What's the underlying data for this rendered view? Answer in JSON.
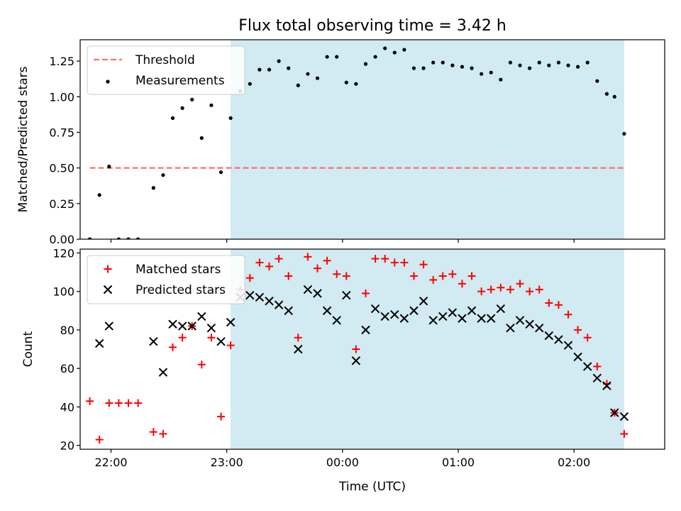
{
  "figure": {
    "title": "Flux total observing time = 3.42 h",
    "xlabel": "Time (UTC)"
  },
  "colors": {
    "shade": "#add8e6",
    "threshold": "#ff6f6f",
    "measurement": "#000000",
    "matched": "#ff0000",
    "predicted": "#000000"
  },
  "chart_data": [
    {
      "type": "scatter",
      "panel": "top",
      "ylabel": "Matched/Predicted stars",
      "xlim": [
        "21:44",
        "02:47"
      ],
      "ylim": [
        0,
        1.4
      ],
      "yticks": [
        0.0,
        0.25,
        0.5,
        0.75,
        1.0,
        1.25
      ],
      "ytick_labels": [
        "0.00",
        "0.25",
        "0.50",
        "0.75",
        "1.00",
        "1.25"
      ],
      "xticks": [
        "22:00",
        "23:00",
        "00:00",
        "01:00",
        "02:00"
      ],
      "shaded_span": [
        "23:02",
        "02:26"
      ],
      "threshold": {
        "name": "Threshold",
        "y": 0.5,
        "x_range": [
          "21:49",
          "02:26"
        ]
      },
      "legend": {
        "placement": "upper-left",
        "entries": [
          "Threshold",
          "Measurements"
        ]
      },
      "series": [
        {
          "name": "Measurements",
          "marker": "dot",
          "points": [
            [
              "21:49",
              0.0
            ],
            [
              "21:54",
              0.31
            ],
            [
              "21:59",
              0.51
            ],
            [
              "22:04",
              0.0
            ],
            [
              "22:09",
              0.0
            ],
            [
              "22:14",
              0.0
            ],
            [
              "22:22",
              0.36
            ],
            [
              "22:27",
              0.45
            ],
            [
              "22:32",
              0.85
            ],
            [
              "22:37",
              0.92
            ],
            [
              "22:42",
              0.98
            ],
            [
              "22:47",
              0.71
            ],
            [
              "22:52",
              0.94
            ],
            [
              "22:57",
              0.47
            ],
            [
              "23:02",
              0.85
            ],
            [
              "23:07",
              1.04
            ],
            [
              "23:12",
              1.09
            ],
            [
              "23:17",
              1.19
            ],
            [
              "23:22",
              1.19
            ],
            [
              "23:27",
              1.25
            ],
            [
              "23:32",
              1.2
            ],
            [
              "23:37",
              1.08
            ],
            [
              "23:42",
              1.16
            ],
            [
              "23:47",
              1.13
            ],
            [
              "23:52",
              1.28
            ],
            [
              "23:57",
              1.28
            ],
            [
              "00:02",
              1.1
            ],
            [
              "00:07",
              1.09
            ],
            [
              "00:12",
              1.23
            ],
            [
              "00:17",
              1.28
            ],
            [
              "00:22",
              1.34
            ],
            [
              "00:27",
              1.31
            ],
            [
              "00:32",
              1.33
            ],
            [
              "00:37",
              1.2
            ],
            [
              "00:42",
              1.2
            ],
            [
              "00:47",
              1.24
            ],
            [
              "00:52",
              1.24
            ],
            [
              "00:57",
              1.22
            ],
            [
              "01:02",
              1.21
            ],
            [
              "01:07",
              1.2
            ],
            [
              "01:12",
              1.16
            ],
            [
              "01:17",
              1.17
            ],
            [
              "01:22",
              1.12
            ],
            [
              "01:27",
              1.24
            ],
            [
              "01:32",
              1.22
            ],
            [
              "01:37",
              1.2
            ],
            [
              "01:42",
              1.24
            ],
            [
              "01:47",
              1.22
            ],
            [
              "01:52",
              1.24
            ],
            [
              "01:57",
              1.22
            ],
            [
              "02:02",
              1.21
            ],
            [
              "02:07",
              1.24
            ],
            [
              "02:12",
              1.11
            ],
            [
              "02:17",
              1.02
            ],
            [
              "02:21",
              1.0
            ],
            [
              "02:26",
              0.74
            ]
          ]
        }
      ]
    },
    {
      "type": "scatter",
      "panel": "bottom",
      "ylabel": "Count",
      "xlabel": "Time (UTC)",
      "xlim": [
        "21:44",
        "02:47"
      ],
      "ylim": [
        18,
        122
      ],
      "yticks": [
        20,
        40,
        60,
        80,
        100,
        120
      ],
      "ytick_labels": [
        "20",
        "40",
        "60",
        "80",
        "100",
        "120"
      ],
      "xticks": [
        "22:00",
        "23:00",
        "00:00",
        "01:00",
        "02:00"
      ],
      "xtick_labels": [
        "22:00",
        "23:00",
        "00:00",
        "01:00",
        "02:00"
      ],
      "shaded_span": [
        "23:02",
        "02:26"
      ],
      "legend": {
        "placement": "upper-left",
        "entries": [
          "Matched stars",
          "Predicted stars"
        ]
      },
      "series": [
        {
          "name": "Matched stars",
          "marker": "plus",
          "points": [
            [
              "21:49",
              43
            ],
            [
              "21:54",
              23
            ],
            [
              "21:59",
              42
            ],
            [
              "22:04",
              42
            ],
            [
              "22:09",
              42
            ],
            [
              "22:14",
              42
            ],
            [
              "22:22",
              27
            ],
            [
              "22:27",
              26
            ],
            [
              "22:32",
              71
            ],
            [
              "22:37",
              76
            ],
            [
              "22:42",
              82
            ],
            [
              "22:47",
              62
            ],
            [
              "22:52",
              76
            ],
            [
              "22:57",
              35
            ],
            [
              "23:02",
              72
            ],
            [
              "23:07",
              101
            ],
            [
              "23:12",
              107
            ],
            [
              "23:17",
              115
            ],
            [
              "23:22",
              113
            ],
            [
              "23:27",
              117
            ],
            [
              "23:32",
              108
            ],
            [
              "23:37",
              76
            ],
            [
              "23:42",
              118
            ],
            [
              "23:47",
              112
            ],
            [
              "23:52",
              116
            ],
            [
              "23:57",
              109
            ],
            [
              "00:02",
              108
            ],
            [
              "00:07",
              70
            ],
            [
              "00:12",
              99
            ],
            [
              "00:17",
              117
            ],
            [
              "00:22",
              117
            ],
            [
              "00:27",
              115
            ],
            [
              "00:32",
              115
            ],
            [
              "00:37",
              108
            ],
            [
              "00:42",
              114
            ],
            [
              "00:47",
              106
            ],
            [
              "00:52",
              108
            ],
            [
              "00:57",
              109
            ],
            [
              "01:02",
              104
            ],
            [
              "01:07",
              108
            ],
            [
              "01:12",
              100
            ],
            [
              "01:17",
              101
            ],
            [
              "01:22",
              102
            ],
            [
              "01:27",
              101
            ],
            [
              "01:32",
              104
            ],
            [
              "01:37",
              100
            ],
            [
              "01:42",
              101
            ],
            [
              "01:47",
              94
            ],
            [
              "01:52",
              93
            ],
            [
              "01:57",
              88
            ],
            [
              "02:02",
              80
            ],
            [
              "02:07",
              76
            ],
            [
              "02:12",
              61
            ],
            [
              "02:17",
              52
            ],
            [
              "02:21",
              37
            ],
            [
              "02:26",
              26
            ]
          ]
        },
        {
          "name": "Predicted stars",
          "marker": "x",
          "points": [
            [
              "21:54",
              73
            ],
            [
              "21:59",
              82
            ],
            [
              "22:22",
              74
            ],
            [
              "22:27",
              58
            ],
            [
              "22:32",
              83
            ],
            [
              "22:37",
              82
            ],
            [
              "22:42",
              82
            ],
            [
              "22:47",
              87
            ],
            [
              "22:52",
              81
            ],
            [
              "22:57",
              74
            ],
            [
              "23:02",
              84
            ],
            [
              "23:07",
              97
            ],
            [
              "23:12",
              98
            ],
            [
              "23:17",
              97
            ],
            [
              "23:22",
              95
            ],
            [
              "23:27",
              93
            ],
            [
              "23:32",
              90
            ],
            [
              "23:37",
              70
            ],
            [
              "23:42",
              101
            ],
            [
              "23:47",
              99
            ],
            [
              "23:52",
              90
            ],
            [
              "23:57",
              85
            ],
            [
              "00:02",
              98
            ],
            [
              "00:07",
              64
            ],
            [
              "00:12",
              80
            ],
            [
              "00:17",
              91
            ],
            [
              "00:22",
              87
            ],
            [
              "00:27",
              88
            ],
            [
              "00:32",
              86
            ],
            [
              "00:37",
              90
            ],
            [
              "00:42",
              95
            ],
            [
              "00:47",
              85
            ],
            [
              "00:52",
              87
            ],
            [
              "00:57",
              89
            ],
            [
              "01:02",
              86
            ],
            [
              "01:07",
              90
            ],
            [
              "01:12",
              86
            ],
            [
              "01:17",
              86
            ],
            [
              "01:22",
              91
            ],
            [
              "01:27",
              81
            ],
            [
              "01:32",
              85
            ],
            [
              "01:37",
              83
            ],
            [
              "01:42",
              81
            ],
            [
              "01:47",
              77
            ],
            [
              "01:52",
              75
            ],
            [
              "01:57",
              72
            ],
            [
              "02:02",
              66
            ],
            [
              "02:07",
              61
            ],
            [
              "02:12",
              55
            ],
            [
              "02:17",
              51
            ],
            [
              "02:21",
              37
            ],
            [
              "02:26",
              35
            ]
          ]
        }
      ]
    }
  ]
}
